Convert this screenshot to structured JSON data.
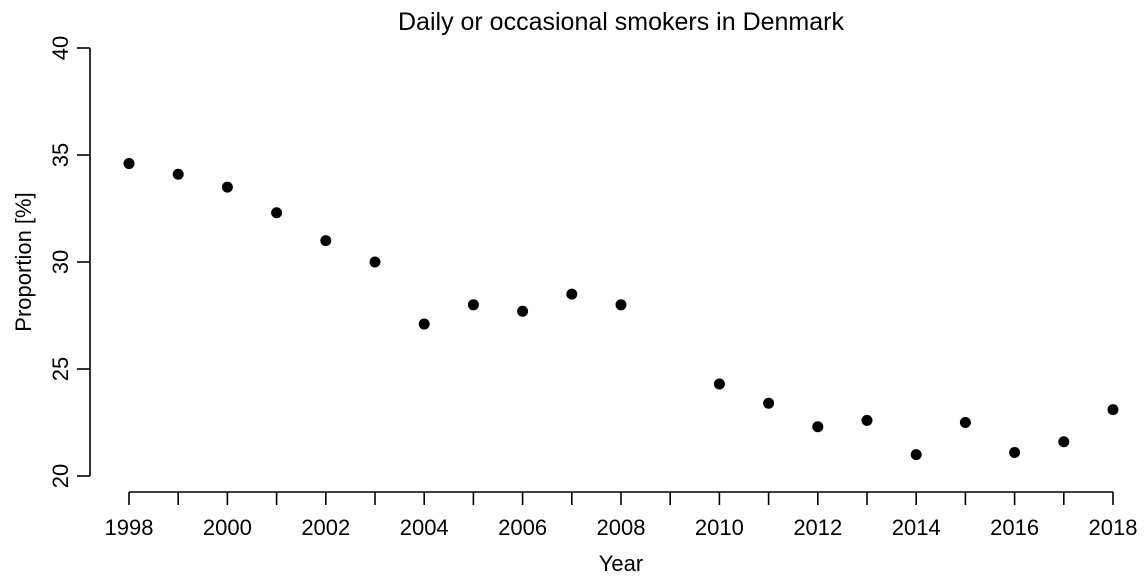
{
  "chart_data": {
    "type": "scatter",
    "title": "Daily or occasional smokers in Denmark",
    "xlabel": "Year",
    "ylabel": "Proportion [%]",
    "xlim": [
      1998,
      2018
    ],
    "ylim": [
      20,
      40
    ],
    "x_ticks": [
      "1998",
      "2000",
      "2002",
      "2004",
      "2006",
      "2008",
      "2010",
      "2012",
      "2014",
      "2016",
      "2018"
    ],
    "x_tick_marks": [
      1998,
      1999,
      2000,
      2001,
      2002,
      2003,
      2004,
      2005,
      2006,
      2007,
      2008,
      2009,
      2010,
      2011,
      2012,
      2013,
      2014,
      2015,
      2016,
      2017,
      2018
    ],
    "y_ticks": [
      "20",
      "25",
      "30",
      "35",
      "40"
    ],
    "grid": false,
    "marker_color": "#000000",
    "points": [
      {
        "x": 1998,
        "y": 34.6
      },
      {
        "x": 1999,
        "y": 34.1
      },
      {
        "x": 2000,
        "y": 33.5
      },
      {
        "x": 2001,
        "y": 32.3
      },
      {
        "x": 2002,
        "y": 31.0
      },
      {
        "x": 2003,
        "y": 30.0
      },
      {
        "x": 2004,
        "y": 27.1
      },
      {
        "x": 2005,
        "y": 28.0
      },
      {
        "x": 2006,
        "y": 27.7
      },
      {
        "x": 2007,
        "y": 28.5
      },
      {
        "x": 2008,
        "y": 28.0
      },
      {
        "x": 2010,
        "y": 24.3
      },
      {
        "x": 2011,
        "y": 23.4
      },
      {
        "x": 2012,
        "y": 22.3
      },
      {
        "x": 2013,
        "y": 22.6
      },
      {
        "x": 2014,
        "y": 21.0
      },
      {
        "x": 2015,
        "y": 22.5
      },
      {
        "x": 2016,
        "y": 21.1
      },
      {
        "x": 2017,
        "y": 21.6
      },
      {
        "x": 2018,
        "y": 23.1
      }
    ]
  }
}
